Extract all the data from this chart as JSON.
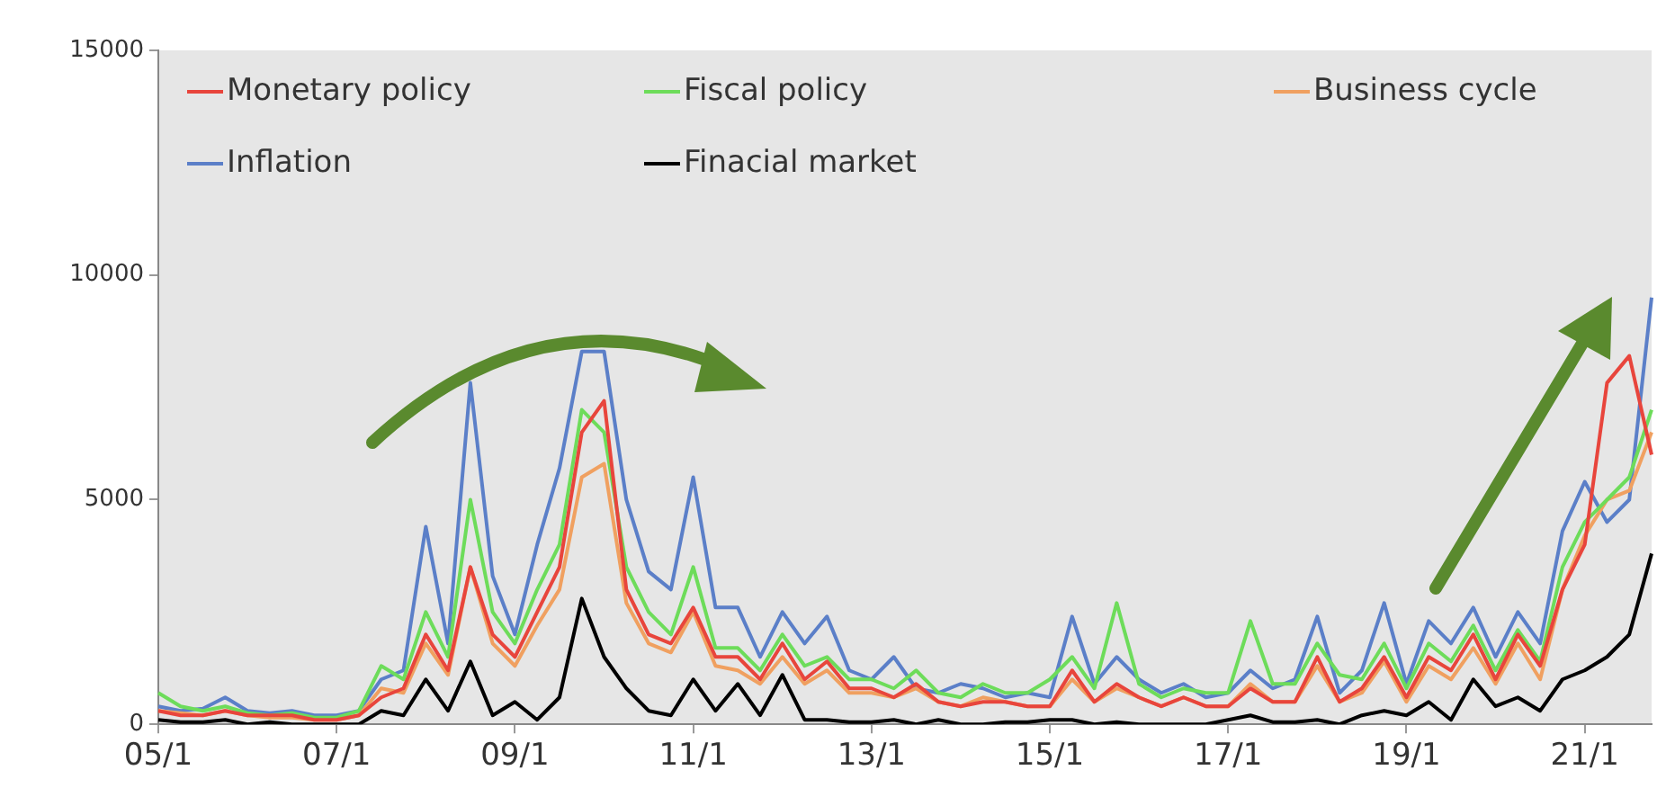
{
  "chart_data": {
    "type": "line",
    "categories": [
      "05/1",
      null,
      null,
      null,
      null,
      null,
      null,
      null,
      "07/1",
      null,
      null,
      null,
      null,
      null,
      null,
      null,
      "09/1",
      null,
      null,
      null,
      null,
      null,
      null,
      null,
      "11/1",
      null,
      null,
      null,
      null,
      null,
      null,
      null,
      "13/1",
      null,
      null,
      null,
      null,
      null,
      null,
      null,
      "15/1",
      null,
      null,
      null,
      null,
      null,
      null,
      null,
      "17/1",
      null,
      null,
      null,
      null,
      null,
      null,
      null,
      "19/1",
      null,
      null,
      null,
      null,
      null,
      null,
      null,
      "21/1",
      null,
      null,
      null
    ],
    "series": [
      {
        "name": "Monetary policy",
        "color": "#e8453c",
        "values": [
          300,
          200,
          200,
          300,
          200,
          200,
          200,
          100,
          100,
          200,
          600,
          800,
          2000,
          1200,
          3500,
          2000,
          1500,
          2500,
          3500,
          6500,
          7200,
          3000,
          2000,
          1800,
          2600,
          1500,
          1500,
          1000,
          1800,
          1000,
          1400,
          800,
          800,
          600,
          900,
          500,
          400,
          500,
          500,
          400,
          400,
          1200,
          500,
          900,
          600,
          400,
          600,
          400,
          400,
          800,
          500,
          500,
          1500,
          500,
          800,
          1500,
          600,
          1500,
          1200,
          2000,
          1000,
          2000,
          1300,
          3000,
          4000,
          7600,
          8200,
          6000
        ]
      },
      {
        "name": "Fiscal policy",
        "color": "#6ddc5a",
        "values": [
          700,
          400,
          300,
          400,
          250,
          200,
          250,
          150,
          150,
          300,
          1300,
          1000,
          2500,
          1500,
          5000,
          2500,
          1800,
          3000,
          4000,
          7000,
          6500,
          3500,
          2500,
          2000,
          3500,
          1700,
          1700,
          1200,
          2000,
          1300,
          1500,
          1000,
          1000,
          800,
          1200,
          700,
          600,
          900,
          700,
          700,
          1000,
          1500,
          800,
          2700,
          900,
          600,
          800,
          700,
          700,
          2300,
          900,
          900,
          1800,
          1100,
          1000,
          1800,
          800,
          1800,
          1400,
          2200,
          1200,
          2100,
          1400,
          3500,
          4500,
          5000,
          5500,
          7000
        ]
      },
      {
        "name": "Business cycle",
        "color": "#f0a060",
        "values": [
          300,
          250,
          200,
          300,
          200,
          150,
          150,
          100,
          100,
          200,
          800,
          700,
          1800,
          1100,
          3500,
          1800,
          1300,
          2200,
          3000,
          5500,
          5800,
          2700,
          1800,
          1600,
          2500,
          1300,
          1200,
          900,
          1500,
          900,
          1200,
          700,
          700,
          600,
          800,
          500,
          400,
          600,
          500,
          400,
          400,
          1000,
          500,
          800,
          600,
          400,
          600,
          400,
          400,
          900,
          500,
          500,
          1300,
          500,
          700,
          1400,
          500,
          1300,
          1000,
          1700,
          900,
          1800,
          1000,
          3000,
          4200,
          5000,
          5200,
          6500
        ]
      },
      {
        "name": "Inflation",
        "color": "#5b7fc8",
        "values": [
          400,
          300,
          350,
          600,
          300,
          250,
          300,
          200,
          200,
          300,
          1000,
          1200,
          4400,
          1800,
          7600,
          3300,
          2000,
          4000,
          5700,
          8300,
          8300,
          5000,
          3400,
          3000,
          5500,
          2600,
          2600,
          1500,
          2500,
          1800,
          2400,
          1200,
          1000,
          1500,
          800,
          700,
          900,
          800,
          600,
          700,
          600,
          2400,
          900,
          1500,
          1000,
          700,
          900,
          600,
          700,
          1200,
          800,
          1000,
          2400,
          700,
          1200,
          2700,
          900,
          2300,
          1800,
          2600,
          1500,
          2500,
          1800,
          4300,
          5400,
          4500,
          5000,
          9500
        ]
      },
      {
        "name": "Finacial market",
        "color": "#000000",
        "values": [
          100,
          50,
          50,
          100,
          0,
          50,
          0,
          0,
          0,
          0,
          300,
          200,
          1000,
          300,
          1400,
          200,
          500,
          100,
          600,
          2800,
          1500,
          800,
          300,
          200,
          1000,
          300,
          900,
          200,
          1100,
          100,
          100,
          50,
          50,
          100,
          0,
          100,
          0,
          0,
          50,
          50,
          100,
          100,
          0,
          50,
          0,
          0,
          0,
          0,
          100,
          200,
          50,
          50,
          100,
          0,
          200,
          300,
          200,
          500,
          100,
          1000,
          400,
          600,
          300,
          1000,
          1200,
          1500,
          2000,
          3800
        ]
      }
    ],
    "ylim": [
      0,
      15000
    ],
    "yticks": [
      0,
      5000,
      10000,
      15000
    ],
    "grid": false,
    "legend": "top",
    "marker": "none",
    "line_style": "solid"
  }
}
